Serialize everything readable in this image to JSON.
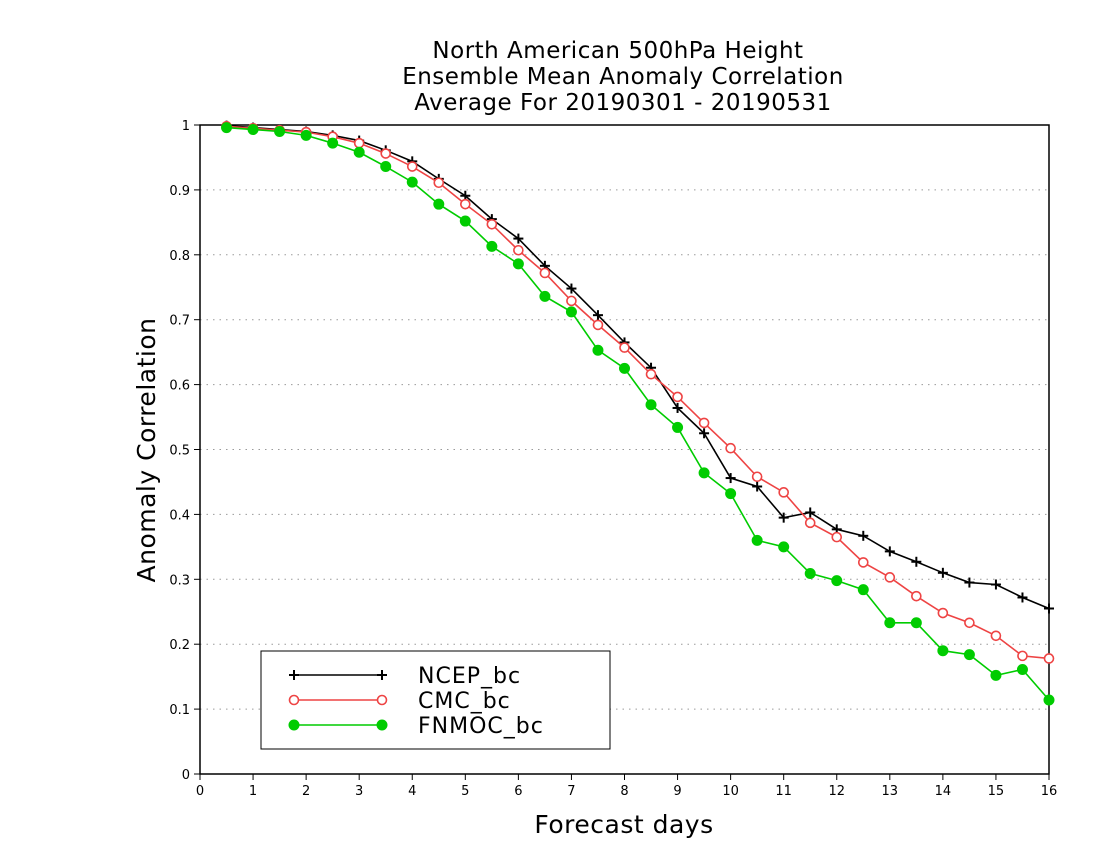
{
  "chart_data": {
    "type": "line",
    "title": [
      "North American 500hPa Height",
      "Ensemble Mean Anomaly Correlation",
      "Average For 20190301 - 20190531"
    ],
    "xlabel": "Forecast days",
    "ylabel": "Anomaly Correlation",
    "xlim": [
      0,
      16
    ],
    "ylim": [
      0,
      1
    ],
    "xticks": [
      "0",
      "1",
      "2",
      "3",
      "4",
      "5",
      "6",
      "7",
      "8",
      "9",
      "10",
      "11",
      "12",
      "13",
      "14",
      "15",
      "16"
    ],
    "yticks": [
      "0",
      "0.1",
      "0.2",
      "0.3",
      "0.4",
      "0.5",
      "0.6",
      "0.7",
      "0.8",
      "0.9",
      "1"
    ],
    "grid": "horizontal dotted",
    "legend_position": "bottom-left",
    "x": [
      0.5,
      1,
      1.5,
      2,
      2.5,
      3,
      3.5,
      4,
      4.5,
      5,
      5.5,
      6,
      6.5,
      7,
      7.5,
      8,
      8.5,
      9,
      9.5,
      10,
      10.5,
      11,
      11.5,
      12,
      12.5,
      13,
      13.5,
      14,
      14.5,
      15,
      15.5,
      16
    ],
    "series": [
      {
        "name": "NCEP_bc",
        "color": "#000000",
        "marker": "plus",
        "values": [
          0.999,
          0.996,
          0.993,
          0.99,
          0.984,
          0.976,
          0.961,
          0.944,
          0.917,
          0.891,
          0.855,
          0.825,
          0.783,
          0.748,
          0.707,
          0.665,
          0.626,
          0.564,
          0.525,
          0.456,
          0.443,
          0.395,
          0.403,
          0.377,
          0.367,
          0.343,
          0.327,
          0.31,
          0.295,
          0.292,
          0.272,
          0.255
        ]
      },
      {
        "name": "CMC_bc",
        "color": "#ee4444",
        "marker": "open-circle",
        "values": [
          0.998,
          0.995,
          0.992,
          0.989,
          0.982,
          0.972,
          0.956,
          0.936,
          0.911,
          0.878,
          0.847,
          0.807,
          0.772,
          0.729,
          0.692,
          0.657,
          0.616,
          0.581,
          0.541,
          0.502,
          0.458,
          0.434,
          0.387,
          0.365,
          0.326,
          0.303,
          0.274,
          0.248,
          0.233,
          0.213,
          0.182,
          0.178
        ]
      },
      {
        "name": "FNMOC_bc",
        "color": "#00cc00",
        "marker": "filled-circle",
        "values": [
          0.996,
          0.993,
          0.99,
          0.984,
          0.972,
          0.958,
          0.936,
          0.912,
          0.878,
          0.852,
          0.813,
          0.786,
          0.736,
          0.712,
          0.653,
          0.625,
          0.569,
          0.534,
          0.464,
          0.432,
          0.36,
          0.35,
          0.309,
          0.298,
          0.284,
          0.233,
          0.233,
          0.19,
          0.184,
          0.152,
          0.161,
          0.114
        ]
      }
    ]
  }
}
